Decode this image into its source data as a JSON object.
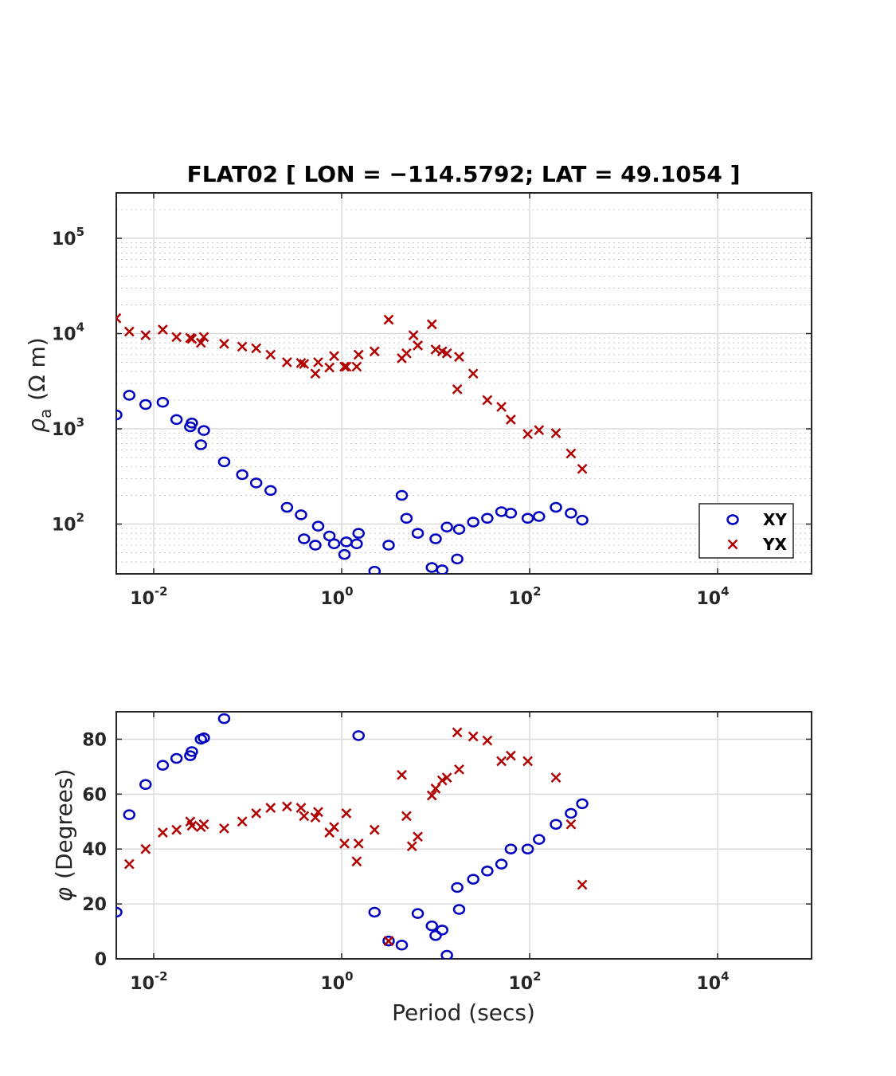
{
  "figure": {
    "title": "FLAT02 [ LON = −114.5792; LAT = 49.1054 ]",
    "xlabel": "Period (secs)",
    "colors": {
      "XY": "#0000c0",
      "YX": "#b00000",
      "axis": "#262626",
      "grid": "#dadada"
    }
  },
  "chart_data": [
    {
      "type": "scatter",
      "title": "FLAT02 [ LON = −114.5792; LAT = 49.1054 ]",
      "ylabel_symbol": "ρ",
      "ylabel_subscript": "a",
      "ylabel_units": "(Ω m)",
      "xscale": "log",
      "yscale": "log",
      "xlim": [
        0.004,
        100000
      ],
      "ylim": [
        30,
        300000
      ],
      "grid": true,
      "minor_grid": true,
      "xticks": [
        {
          "value": 0.01,
          "base": "10",
          "exp": "-2"
        },
        {
          "value": 1,
          "base": "10",
          "exp": "0"
        },
        {
          "value": 100,
          "base": "10",
          "exp": "2"
        },
        {
          "value": 10000,
          "base": "10",
          "exp": "4"
        }
      ],
      "yticks": [
        {
          "value": 100,
          "base": "10",
          "exp": "2"
        },
        {
          "value": 1000,
          "base": "10",
          "exp": "3"
        },
        {
          "value": 10000,
          "base": "10",
          "exp": "4"
        },
        {
          "value": 100000,
          "base": "10",
          "exp": "5"
        }
      ],
      "legend": {
        "placement": "bottom-right",
        "entries": [
          "XY",
          "YX"
        ]
      },
      "series": [
        {
          "name": "XY",
          "marker": "circle",
          "color": "#0000c0",
          "points": [
            [
              0.004,
              1400
            ],
            [
              0.0055,
              2250
            ],
            [
              0.0082,
              1800
            ],
            [
              0.0125,
              1900
            ],
            [
              0.0175,
              1250
            ],
            [
              0.0245,
              1050
            ],
            [
              0.0255,
              1150
            ],
            [
              0.0318,
              680
            ],
            [
              0.0342,
              960
            ],
            [
              0.0562,
              450
            ],
            [
              0.0875,
              330
            ],
            [
              0.1232,
              270
            ],
            [
              0.1754,
              225
            ],
            [
              0.2622,
              150
            ],
            [
              0.3698,
              125
            ],
            [
              0.3979,
              70
            ],
            [
              0.5248,
              60
            ],
            [
              0.5623,
              95
            ],
            [
              0.7413,
              75
            ],
            [
              0.8318,
              62
            ],
            [
              1.0715,
              48
            ],
            [
              1.122,
              65
            ],
            [
              1.4454,
              62
            ],
            [
              1.5136,
              80
            ],
            [
              2.2387,
              32
            ],
            [
              3.1623,
              60
            ],
            [
              4.3652,
              200
            ],
            [
              4.8978,
              115
            ],
            [
              6.4565,
              80
            ],
            [
              9.1201,
              35
            ],
            [
              10.0,
              70
            ],
            [
              11.749,
              33
            ],
            [
              13.183,
              93
            ],
            [
              16.982,
              43
            ],
            [
              17.783,
              88
            ],
            [
              25.119,
              105
            ],
            [
              35.481,
              115
            ],
            [
              50.119,
              135
            ],
            [
              63.096,
              130
            ],
            [
              95.499,
              115
            ],
            [
              125.89,
              120
            ],
            [
              190.55,
              150
            ],
            [
              275.42,
              130
            ],
            [
              363.08,
              110
            ]
          ]
        },
        {
          "name": "YX",
          "marker": "x",
          "color": "#b00000",
          "points": [
            [
              0.004,
              14500
            ],
            [
              0.0055,
              10500
            ],
            [
              0.0082,
              9600
            ],
            [
              0.0125,
              11000
            ],
            [
              0.0175,
              9200
            ],
            [
              0.0245,
              9000
            ],
            [
              0.0255,
              8800
            ],
            [
              0.0318,
              8000
            ],
            [
              0.0342,
              9200
            ],
            [
              0.0562,
              7800
            ],
            [
              0.0875,
              7300
            ],
            [
              0.1232,
              7000
            ],
            [
              0.1754,
              6000
            ],
            [
              0.2622,
              5000
            ],
            [
              0.3698,
              4900
            ],
            [
              0.3979,
              4800
            ],
            [
              0.5248,
              3800
            ],
            [
              0.5623,
              5000
            ],
            [
              0.7413,
              4400
            ],
            [
              0.8318,
              5800
            ],
            [
              1.0715,
              4500
            ],
            [
              1.122,
              4500
            ],
            [
              1.4454,
              4500
            ],
            [
              1.5136,
              6000
            ],
            [
              2.2387,
              6500
            ],
            [
              3.1623,
              14000
            ],
            [
              4.3652,
              5500
            ],
            [
              4.8978,
              6200
            ],
            [
              6.4565,
              7500
            ],
            [
              5.8,
              9600
            ],
            [
              9.1201,
              12500
            ],
            [
              10.0,
              6800
            ],
            [
              11.749,
              6500
            ],
            [
              13.183,
              6200
            ],
            [
              16.982,
              2600
            ],
            [
              17.783,
              5700
            ],
            [
              25.119,
              3800
            ],
            [
              35.481,
              2000
            ],
            [
              50.119,
              1700
            ],
            [
              63.096,
              1250
            ],
            [
              95.499,
              880
            ],
            [
              125.89,
              970
            ],
            [
              190.55,
              900
            ],
            [
              275.42,
              550
            ],
            [
              363.08,
              380
            ]
          ]
        }
      ]
    },
    {
      "type": "scatter",
      "ylabel_symbol": "φ",
      "ylabel": "(Degrees)",
      "xlabel": "Period (secs)",
      "xscale": "log",
      "yscale": "linear",
      "xlim": [
        0.004,
        100000
      ],
      "ylim": [
        0,
        90
      ],
      "grid": true,
      "xticks": [
        {
          "value": 0.01,
          "base": "10",
          "exp": "-2"
        },
        {
          "value": 1,
          "base": "10",
          "exp": "0"
        },
        {
          "value": 100,
          "base": "10",
          "exp": "2"
        },
        {
          "value": 10000,
          "base": "10",
          "exp": "4"
        }
      ],
      "yticks": [
        0,
        20,
        40,
        60,
        80
      ],
      "series": [
        {
          "name": "XY",
          "marker": "circle",
          "color": "#0000c0",
          "points": [
            [
              0.004,
              17
            ],
            [
              0.0055,
              52.5
            ],
            [
              0.0082,
              63.5
            ],
            [
              0.0125,
              70.5
            ],
            [
              0.0175,
              73
            ],
            [
              0.0245,
              74
            ],
            [
              0.0255,
              75.5
            ],
            [
              0.0318,
              80
            ],
            [
              0.0342,
              80.5
            ],
            [
              0.0562,
              87.5
            ],
            [
              1.5136,
              81.3
            ],
            [
              2.2387,
              17
            ],
            [
              3.1623,
              6.5
            ],
            [
              4.3652,
              5
            ],
            [
              6.4565,
              16.5
            ],
            [
              9.1201,
              12
            ],
            [
              10.0,
              8.5
            ],
            [
              11.749,
              10.5
            ],
            [
              13.183,
              1.3
            ],
            [
              16.982,
              26
            ],
            [
              17.783,
              18
            ],
            [
              25.119,
              29
            ],
            [
              35.481,
              32
            ],
            [
              50.119,
              34.5
            ],
            [
              63.096,
              40
            ],
            [
              95.499,
              40
            ],
            [
              125.89,
              43.5
            ],
            [
              190.55,
              49
            ],
            [
              275.42,
              53
            ],
            [
              363.08,
              56.5
            ]
          ]
        },
        {
          "name": "YX",
          "marker": "x",
          "color": "#b00000",
          "points": [
            [
              0.0055,
              34.5
            ],
            [
              0.0082,
              40
            ],
            [
              0.0125,
              46
            ],
            [
              0.0175,
              47
            ],
            [
              0.0245,
              50
            ],
            [
              0.0255,
              48.5
            ],
            [
              0.0318,
              48
            ],
            [
              0.0342,
              49
            ],
            [
              0.0562,
              47.5
            ],
            [
              0.0875,
              50
            ],
            [
              0.1232,
              53
            ],
            [
              0.1754,
              55
            ],
            [
              0.2622,
              55.5
            ],
            [
              0.3698,
              55
            ],
            [
              0.3979,
              52
            ],
            [
              0.5248,
              51.5
            ],
            [
              0.5623,
              53.5
            ],
            [
              0.7413,
              46
            ],
            [
              0.8318,
              48
            ],
            [
              1.0715,
              42
            ],
            [
              1.122,
              53
            ],
            [
              1.4454,
              35.5
            ],
            [
              1.5136,
              42
            ],
            [
              2.2387,
              47
            ],
            [
              3.1623,
              6.5
            ],
            [
              4.3652,
              67
            ],
            [
              4.8978,
              52
            ],
            [
              5.6,
              41
            ],
            [
              6.4565,
              44.5
            ],
            [
              9.1201,
              59.5
            ],
            [
              10.0,
              62
            ],
            [
              11.749,
              65
            ],
            [
              13.183,
              66
            ],
            [
              16.982,
              82.5
            ],
            [
              17.783,
              69
            ],
            [
              25.119,
              81
            ],
            [
              35.481,
              79.5
            ],
            [
              50.119,
              72
            ],
            [
              63.096,
              74
            ],
            [
              95.499,
              72
            ],
            [
              190.55,
              66
            ],
            [
              275.42,
              49
            ],
            [
              363.08,
              27
            ]
          ]
        }
      ]
    }
  ]
}
